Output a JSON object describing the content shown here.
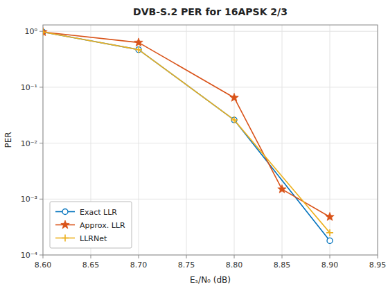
{
  "chart_data": {
    "type": "line",
    "title": "DVB-S.2 PER for 16APSK 2/3",
    "x_label": "Eₛ/N₀ (dB)",
    "y_label": "PER",
    "log": "y",
    "grid": true,
    "legend": "lower left",
    "xlim": [
      8.6,
      8.95
    ],
    "ylim": [
      0.0001,
      1.3
    ],
    "xticks": [
      {
        "value": 8.6,
        "label": "8.60"
      },
      8.65,
      {
        "value": 8.7,
        "label": "8.70"
      },
      8.75,
      {
        "value": 8.8,
        "label": "8.80"
      },
      8.85,
      {
        "value": 8.9,
        "label": "8.90"
      },
      8.95
    ],
    "yticks": [
      {
        "value": 0.0001,
        "label": "10⁻⁴"
      },
      {
        "value": 0.001,
        "label": "10⁻³"
      },
      {
        "value": 0.01,
        "label": "10⁻²"
      },
      {
        "value": 0.1,
        "label": "10⁻¹"
      },
      {
        "value": 1,
        "label": "10⁰"
      }
    ],
    "series": [
      {
        "name": "Exact LLR",
        "color": "#0072BD",
        "marker": "circle",
        "x": [
          8.6,
          8.7,
          8.8,
          8.9
        ],
        "values": [
          0.97,
          0.47,
          0.026,
          0.00018
        ]
      },
      {
        "name": "Approx. LLR",
        "color": "#D95319",
        "marker": "star",
        "x": [
          8.6,
          8.7,
          8.8,
          8.85,
          8.9
        ],
        "values": [
          0.97,
          0.63,
          0.065,
          0.0015,
          0.00048
        ]
      },
      {
        "name": "LLRNet",
        "color": "#EDB120",
        "marker": "plus",
        "x": [
          8.6,
          8.7,
          8.8,
          8.9
        ],
        "values": [
          0.97,
          0.47,
          0.026,
          0.00025
        ]
      }
    ]
  }
}
